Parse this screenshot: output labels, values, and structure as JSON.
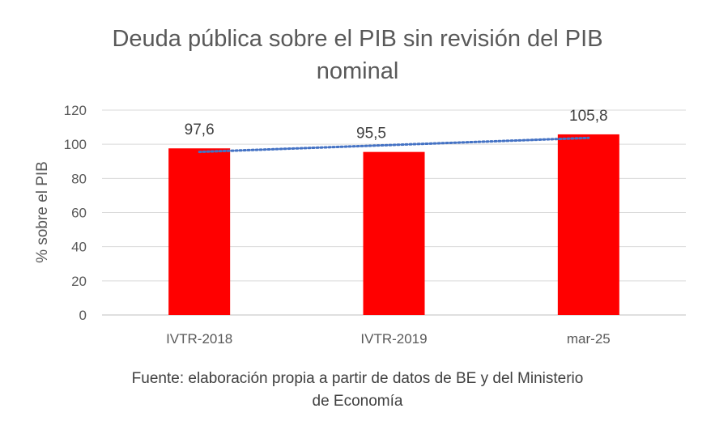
{
  "chart_data": {
    "type": "bar",
    "title": "Deuda pública sobre el PIB sin revisión del PIB nominal",
    "title_lines": [
      "Deuda pública sobre el PIB sin revisión del PIB",
      "nominal"
    ],
    "ylabel": "% sobre el PIB",
    "xlabel": "",
    "categories": [
      "IVTR-2018",
      "IVTR-2019",
      "mar-25"
    ],
    "values": [
      97.6,
      95.5,
      105.8
    ],
    "data_labels": [
      "97,6",
      "95,5",
      "105,8"
    ],
    "ylim": [
      0,
      120
    ],
    "yticks": [
      0,
      20,
      40,
      60,
      80,
      100,
      120
    ],
    "grid": true,
    "legend": "none",
    "trendline": {
      "type": "linear",
      "style": "dotted"
    },
    "colors": {
      "bar": "#ff0000",
      "trend": "#4472c4",
      "grid": "#d9d9d9",
      "axis": "#bfbfbf"
    }
  },
  "source": {
    "lines": [
      "Fuente: elaboración propia a partir de datos de BE y del Ministerio",
      "de Economía"
    ]
  }
}
